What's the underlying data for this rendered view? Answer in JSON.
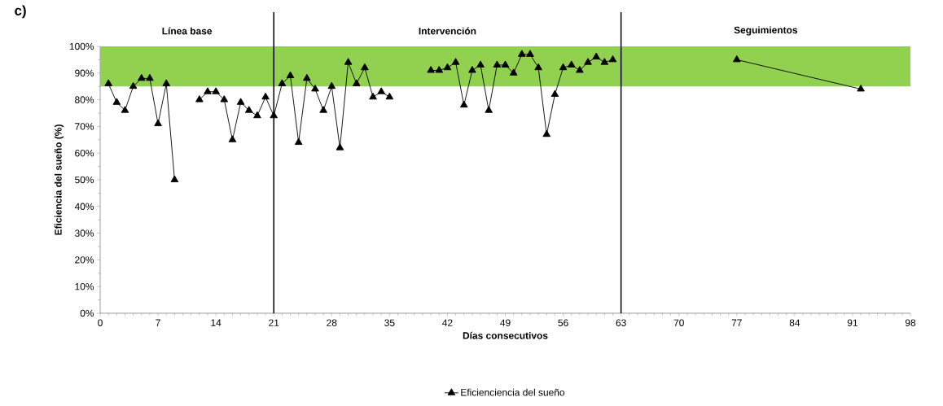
{
  "chart_data": {
    "type": "line",
    "title": "c)",
    "xlabel": "Días consecutivos",
    "ylabel": "Eficiencia del sueño (%)",
    "x": [
      1,
      2,
      3,
      4,
      5,
      6,
      7,
      8,
      9,
      10,
      11,
      12,
      13,
      14,
      15,
      16,
      17,
      18,
      19,
      20,
      21,
      22,
      23,
      24,
      25,
      26,
      27,
      28,
      29,
      30,
      31,
      32,
      33,
      34,
      35,
      36,
      37,
      38,
      39,
      40,
      41,
      42,
      43,
      44,
      45,
      46,
      47,
      48,
      49,
      50,
      51,
      52,
      53,
      54,
      55,
      56,
      57,
      58,
      59,
      60,
      61,
      62,
      63,
      77,
      92
    ],
    "series": [
      {
        "name": "Eficienciencia del sueño",
        "color": "#000000",
        "values": [
          86,
          79,
          76,
          85,
          88,
          88,
          71,
          86,
          50,
          null,
          null,
          80,
          83,
          83,
          80,
          65,
          79,
          76,
          74,
          81,
          74,
          86,
          89,
          64,
          88,
          84,
          76,
          85,
          62,
          94,
          86,
          92,
          81,
          83,
          81,
          null,
          null,
          null,
          null,
          91,
          91,
          92,
          94,
          78,
          91,
          93,
          76,
          93,
          93,
          90,
          97,
          97,
          92,
          67,
          82,
          92,
          93,
          91,
          94,
          96,
          94,
          95,
          null,
          95,
          84
        ]
      }
    ],
    "xlim": [
      0,
      98
    ],
    "xticks": [
      0,
      7,
      14,
      21,
      28,
      35,
      42,
      49,
      56,
      63,
      70,
      77,
      84,
      91,
      98
    ],
    "ylim": [
      0,
      100
    ],
    "yticks": [
      {
        "value": 0,
        "label": "0%"
      },
      {
        "value": 10,
        "label": "10%"
      },
      {
        "value": 20,
        "label": "20%"
      },
      {
        "value": 30,
        "label": "30%"
      },
      {
        "value": 40,
        "label": "40%"
      },
      {
        "value": 50,
        "label": "50%"
      },
      {
        "value": 60,
        "label": "60%"
      },
      {
        "value": 70,
        "label": "70%"
      },
      {
        "value": 80,
        "label": "80%"
      },
      {
        "value": 90,
        "label": "90%"
      },
      {
        "value": 100,
        "label": "100%"
      }
    ],
    "bands": [
      {
        "axis": "y",
        "from": 85,
        "to": 100,
        "color": "#92d050"
      }
    ],
    "ref_lines": [
      {
        "axis": "x",
        "value": 21
      },
      {
        "axis": "x",
        "value": 63
      }
    ],
    "annotations": [
      "Línea base",
      "Intervención",
      "Seguimientos"
    ],
    "marker": "triangle",
    "line_style": "solid",
    "grid": false,
    "legend": "bottom"
  }
}
